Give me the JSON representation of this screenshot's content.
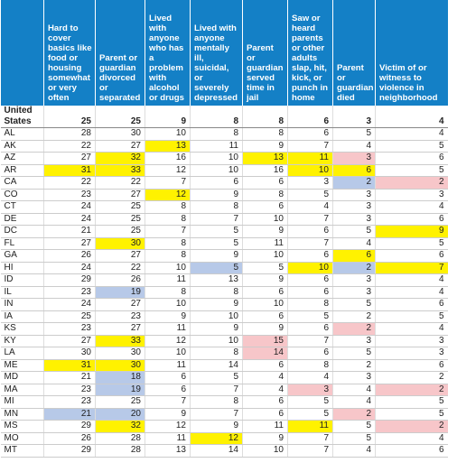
{
  "table": {
    "columns": [
      "Hard to cover basics like food or housing somewhat or very often",
      "Parent or guardian divorced or separated",
      "Lived with anyone who has a problem with alcohol or drugs",
      "Lived with anyone mentally ill, suicidal, or severely depressed",
      "Parent or guardian served time in jail",
      "Saw or heard parents or other adults slap, hit, kick, or punch in home",
      "Parent or guardian died",
      "Victim of or witness to violence in neighborhood"
    ],
    "highlight_colors": {
      "y": "#fff200",
      "p": "#f7c6c9",
      "b": "#b7c9e8"
    },
    "rows": [
      {
        "label": "United States",
        "values": [
          25,
          25,
          9,
          8,
          8,
          6,
          3,
          4
        ],
        "hl": [
          null,
          null,
          null,
          null,
          null,
          null,
          null,
          null
        ]
      },
      {
        "label": "AL",
        "values": [
          28,
          30,
          10,
          8,
          8,
          6,
          5,
          4
        ],
        "hl": [
          null,
          null,
          null,
          null,
          null,
          null,
          null,
          null
        ]
      },
      {
        "label": "AK",
        "values": [
          22,
          27,
          13,
          11,
          9,
          7,
          4,
          5
        ],
        "hl": [
          null,
          null,
          "y",
          null,
          null,
          null,
          null,
          null
        ]
      },
      {
        "label": "AZ",
        "values": [
          27,
          32,
          16,
          10,
          13,
          11,
          3,
          6
        ],
        "hl": [
          null,
          "y",
          null,
          null,
          "y",
          "y",
          "p",
          null
        ]
      },
      {
        "label": "AR",
        "values": [
          31,
          33,
          12,
          10,
          16,
          10,
          6,
          5
        ],
        "hl": [
          "y",
          "y",
          null,
          null,
          null,
          "y",
          "y",
          null
        ]
      },
      {
        "label": "CA",
        "values": [
          22,
          22,
          7,
          6,
          6,
          3,
          2,
          2
        ],
        "hl": [
          null,
          null,
          null,
          null,
          null,
          null,
          "b",
          "p"
        ]
      },
      {
        "label": "CO",
        "values": [
          23,
          27,
          12,
          9,
          8,
          5,
          3,
          3
        ],
        "hl": [
          null,
          null,
          "y",
          null,
          null,
          null,
          null,
          null
        ]
      },
      {
        "label": "CT",
        "values": [
          24,
          25,
          8,
          8,
          6,
          4,
          3,
          4
        ],
        "hl": [
          null,
          null,
          null,
          null,
          null,
          null,
          null,
          null
        ]
      },
      {
        "label": "DE",
        "values": [
          24,
          25,
          8,
          7,
          10,
          7,
          3,
          6
        ],
        "hl": [
          null,
          null,
          null,
          null,
          null,
          null,
          null,
          null
        ]
      },
      {
        "label": "DC",
        "values": [
          21,
          25,
          7,
          5,
          9,
          6,
          5,
          9
        ],
        "hl": [
          null,
          null,
          null,
          null,
          null,
          null,
          null,
          "y"
        ]
      },
      {
        "label": "FL",
        "values": [
          27,
          30,
          8,
          5,
          11,
          7,
          4,
          5
        ],
        "hl": [
          null,
          "y",
          null,
          null,
          null,
          null,
          null,
          null
        ]
      },
      {
        "label": "GA",
        "values": [
          26,
          27,
          8,
          9,
          10,
          6,
          6,
          6
        ],
        "hl": [
          null,
          null,
          null,
          null,
          null,
          null,
          "y",
          null
        ]
      },
      {
        "label": "HI",
        "values": [
          24,
          22,
          10,
          5,
          5,
          10,
          2,
          7
        ],
        "hl": [
          null,
          null,
          null,
          "b",
          null,
          "y",
          "b",
          "y"
        ]
      },
      {
        "label": "ID",
        "values": [
          29,
          26,
          11,
          13,
          9,
          6,
          3,
          4
        ],
        "hl": [
          null,
          null,
          null,
          null,
          null,
          null,
          null,
          null
        ]
      },
      {
        "label": "IL",
        "values": [
          23,
          19,
          8,
          8,
          6,
          6,
          3,
          4
        ],
        "hl": [
          null,
          "b",
          null,
          null,
          null,
          null,
          null,
          null
        ]
      },
      {
        "label": "IN",
        "values": [
          24,
          27,
          10,
          9,
          10,
          8,
          5,
          6
        ],
        "hl": [
          null,
          null,
          null,
          null,
          null,
          null,
          null,
          null
        ]
      },
      {
        "label": "IA",
        "values": [
          25,
          23,
          9,
          10,
          6,
          5,
          2,
          5
        ],
        "hl": [
          null,
          null,
          null,
          null,
          null,
          null,
          null,
          null
        ]
      },
      {
        "label": "KS",
        "values": [
          23,
          27,
          11,
          9,
          9,
          6,
          2,
          4
        ],
        "hl": [
          null,
          null,
          null,
          null,
          null,
          null,
          "p",
          null
        ]
      },
      {
        "label": "KY",
        "values": [
          27,
          33,
          12,
          10,
          15,
          7,
          3,
          3
        ],
        "hl": [
          null,
          "y",
          null,
          null,
          "p",
          null,
          null,
          null
        ]
      },
      {
        "label": "LA",
        "values": [
          30,
          30,
          10,
          8,
          14,
          6,
          5,
          3
        ],
        "hl": [
          null,
          null,
          null,
          null,
          "p",
          null,
          null,
          null
        ]
      },
      {
        "label": "ME",
        "values": [
          31,
          30,
          11,
          14,
          6,
          8,
          2,
          6
        ],
        "hl": [
          "y",
          "y",
          null,
          null,
          null,
          null,
          null,
          null
        ]
      },
      {
        "label": "MD",
        "values": [
          21,
          18,
          6,
          5,
          4,
          4,
          3,
          2
        ],
        "hl": [
          null,
          "b",
          null,
          null,
          null,
          null,
          null,
          null
        ]
      },
      {
        "label": "MA",
        "values": [
          23,
          19,
          6,
          7,
          4,
          3,
          4,
          2
        ],
        "hl": [
          null,
          "b",
          null,
          null,
          null,
          "p",
          null,
          "p"
        ]
      },
      {
        "label": "MI",
        "values": [
          23,
          25,
          7,
          8,
          6,
          5,
          4,
          5
        ],
        "hl": [
          null,
          null,
          null,
          null,
          null,
          null,
          null,
          null
        ]
      },
      {
        "label": "MN",
        "values": [
          21,
          20,
          9,
          7,
          6,
          5,
          2,
          5
        ],
        "hl": [
          "b",
          "b",
          null,
          null,
          null,
          null,
          "p",
          null
        ]
      },
      {
        "label": "MS",
        "values": [
          29,
          32,
          12,
          9,
          11,
          11,
          5,
          2
        ],
        "hl": [
          null,
          "y",
          null,
          null,
          null,
          "y",
          null,
          "p"
        ]
      },
      {
        "label": "MO",
        "values": [
          26,
          28,
          11,
          12,
          9,
          7,
          5,
          4
        ],
        "hl": [
          null,
          null,
          null,
          "y",
          null,
          null,
          null,
          null
        ]
      },
      {
        "label": "MT",
        "values": [
          29,
          28,
          13,
          14,
          10,
          7,
          4,
          6
        ],
        "hl": [
          null,
          null,
          null,
          null,
          null,
          null,
          null,
          null
        ]
      }
    ]
  }
}
